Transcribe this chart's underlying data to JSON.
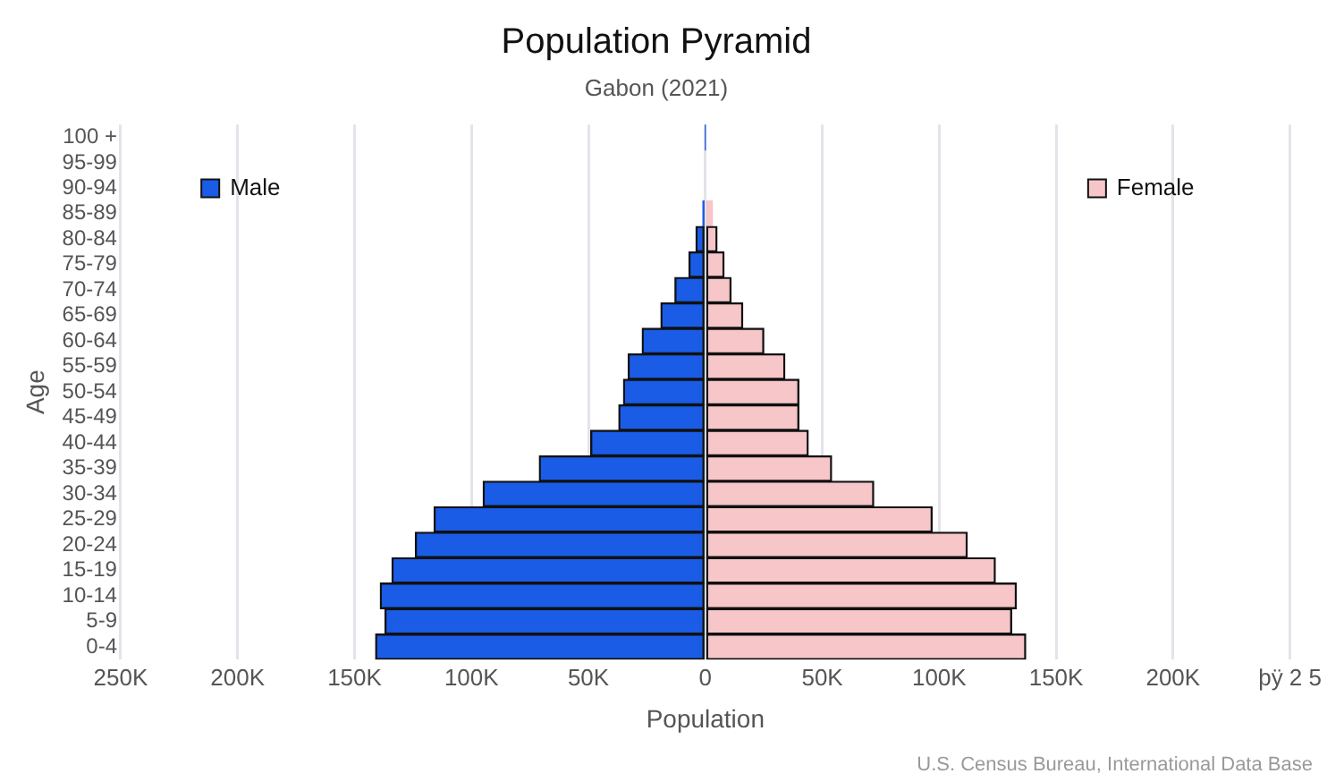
{
  "chart_data": {
    "type": "bar",
    "orientation": "horizontal",
    "stacked": true,
    "title": "Population Pyramid",
    "subtitle": "Gabon (2021)",
    "xlabel": "Population",
    "ylabel": "Age",
    "categories": [
      "100 +",
      "95-99",
      "90-94",
      "85-89",
      "80-84",
      "75-79",
      "70-74",
      "65-69",
      "60-64",
      "55-59",
      "50-54",
      "45-49",
      "40-44",
      "35-39",
      "30-34",
      "25-29",
      "20-24",
      "15-19",
      "10-14",
      "5-9",
      "0-4"
    ],
    "series": [
      {
        "name": "Male",
        "color": "#1a5ce6",
        "values": [
          0,
          null,
          null,
          -1000,
          -4000,
          -7000,
          -13000,
          -19000,
          -27000,
          -33000,
          -35000,
          -37000,
          -49000,
          -71000,
          -95000,
          -116000,
          -124000,
          -134000,
          -139000,
          -137000,
          -141000
        ]
      },
      {
        "name": "Female",
        "color": "#f7c6c9",
        "values": [
          0,
          null,
          null,
          3000,
          5000,
          8000,
          11000,
          16000,
          25000,
          34000,
          40000,
          40000,
          44000,
          54000,
          72000,
          97000,
          112000,
          124000,
          133000,
          131000,
          137000
        ]
      }
    ],
    "xlim": [
      -250000,
      250000
    ],
    "xticks": [
      {
        "value": -250000,
        "label": "250K"
      },
      {
        "value": -200000,
        "label": "200K"
      },
      {
        "value": -150000,
        "label": "150K"
      },
      {
        "value": -100000,
        "label": "100K"
      },
      {
        "value": -50000,
        "label": "50K"
      },
      0,
      {
        "value": 50000,
        "label": "50K"
      },
      {
        "value": 100000,
        "label": "100K"
      },
      {
        "value": 150000,
        "label": "150K"
      },
      {
        "value": 200000,
        "label": "200K"
      },
      {
        "value": 250000,
        "label": "þÿ 2 5"
      }
    ],
    "grid": "x",
    "legend": "top",
    "annotations": [
      "U.S. Census Bureau, International Data Base"
    ]
  }
}
